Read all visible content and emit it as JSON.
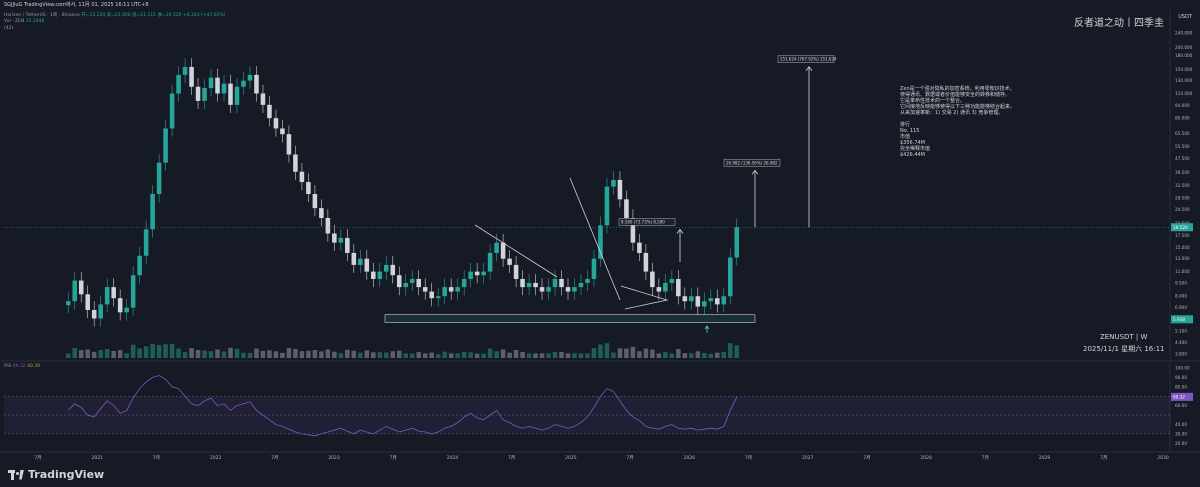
{
  "header": {
    "topline": "SGJJluG TradingView.com에서, 11月 01, 2025 16:11 UTC+8",
    "symbol_line": "Horizen / TetherUS · 1周 · Binance",
    "ohlc": "开=13.234 高=21.000 低=11.111 收=19.520 +6.343 (+47.02%)",
    "vol_line": "Vol · ZEN",
    "vol_value": "15.194K",
    "sub_line": "(42)"
  },
  "brand": "反者道之动丨四季圭",
  "quote_currency": "USDT",
  "description": {
    "lines": [
      "Zen是一个强对隐私的加密系统，利用零知识技术，",
      "使得通讯、数据或者价值能够安全的转移和储存。",
      "它是革命性技术的一个整合。",
      "它间接地反映能够使得以下三种功能能够结合起来，",
      "从来加速革新：1) 交易 2) 通讯 3) 竞争管理。",
      "",
      "排行",
      "No. 115",
      "市值",
      "$356.74M",
      "完全稀释市值",
      "$426.44M"
    ]
  },
  "symbol_label": "ZENUSDT | W",
  "date_label": "2025/11/1 星期六 16:11",
  "rsi": {
    "label": "RSI",
    "value": "69.32",
    "sub": "40.39"
  },
  "footer": {
    "logo_text": "TradingView"
  },
  "colors": {
    "up": "#26a69a",
    "down": "#d1d4dc",
    "rsi": "#7e57c2",
    "bg": "#161a25"
  },
  "chart_data": [
    {
      "type": "candlestick",
      "title": "Horizen / TetherUS · 1周 · Binance",
      "scale": "log",
      "y_ticks": [
        240.0,
        200.0,
        180.0,
        150.0,
        130.0,
        110.0,
        94.0,
        80.0,
        65.5,
        55.5,
        47.5,
        39.5,
        33.5,
        28.5,
        24.5,
        20.5,
        17.5,
        15.0,
        13.0,
        11.0,
        9.5,
        8.0,
        6.9,
        5.9,
        5.1,
        4.4,
        3.8
      ],
      "y_tick_labels": [
        "240.000",
        "200.000",
        "180.000",
        "150.000",
        "130.000",
        "110.000",
        "94.000",
        "80.000",
        "65.500",
        "55.500",
        "47.500",
        "39.500",
        "33.500",
        "28.500",
        "24.500",
        "20.500",
        "17.500",
        "15.000",
        "13.000",
        "11.000",
        "9.500",
        "8.000",
        "6.900",
        "5.900",
        "5.100",
        "4.400",
        "3.800"
      ],
      "x_labels": [
        "7月",
        "2021",
        "7月",
        "2022",
        "7月",
        "2023",
        "7月",
        "2024",
        "7月",
        "2025",
        "7月",
        "2026",
        "7月",
        "2027",
        "7月",
        "2028",
        "7月",
        "2029",
        "7月",
        "2030"
      ],
      "last_price": "19.520",
      "price_tags": [
        "19.520",
        "5.938"
      ],
      "targets": [
        {
          "label": "8.580 (73.73%) 8,580",
          "value": 20.5
        },
        {
          "label": "26.982 (136.56%) 26,982",
          "value": 44.0
        },
        {
          "label": "151.624 (767.92%) 151,624",
          "value": 168.0
        }
      ],
      "series": [
        {
          "name": "price",
          "values": [
            7.5,
            9.8,
            8.2,
            6.7,
            6.0,
            7.2,
            9.0,
            7.8,
            6.5,
            6.9,
            10.5,
            13.5,
            19.0,
            30.0,
            45.0,
            70.0,
            110.0,
            140.0,
            155.0,
            120.0,
            100.0,
            118.0,
            135.0,
            110.0,
            125.0,
            95.0,
            120.0,
            130.0,
            140.0,
            110.0,
            95.0,
            80.0,
            70.0,
            65.0,
            50.0,
            40.0,
            35.0,
            30.0,
            25.0,
            22.0,
            18.0,
            16.0,
            17.0,
            14.0,
            12.0,
            13.0,
            11.0,
            10.0,
            11.0,
            12.0,
            10.5,
            9.0,
            9.5,
            10.0,
            9.0,
            8.5,
            7.8,
            8.0,
            9.0,
            8.5,
            9.0,
            10.0,
            11.0,
            10.5,
            11.0,
            14.0,
            16.0,
            13.0,
            12.0,
            10.0,
            9.0,
            9.5,
            9.0,
            8.5,
            9.0,
            10.0,
            9.0,
            8.5,
            9.0,
            9.5,
            10.0,
            13.0,
            20.0,
            33.0,
            36.0,
            28.0,
            22.0,
            16.0,
            14.0,
            11.0,
            9.0,
            8.5,
            9.5,
            10.0,
            8.0,
            7.5,
            8.0,
            7.0,
            7.5,
            7.8,
            7.2,
            8.0,
            13.2,
            19.52
          ]
        }
      ]
    },
    {
      "type": "line",
      "title": "RSI",
      "y_ticks": [
        100,
        90,
        80,
        70,
        60,
        50,
        40,
        30,
        20
      ],
      "y_tick_labels": [
        "100.00",
        "90.00",
        "80.00",
        "",
        "60.00",
        "",
        "40.00",
        "30.00",
        "20.00"
      ],
      "series": [
        {
          "name": "RSI",
          "values": [
            55,
            62,
            58,
            50,
            48,
            57,
            65,
            60,
            52,
            55,
            68,
            78,
            85,
            90,
            92,
            88,
            80,
            78,
            70,
            62,
            60,
            65,
            68,
            60,
            62,
            55,
            60,
            62,
            64,
            55,
            50,
            45,
            40,
            38,
            35,
            32,
            30,
            29,
            28,
            30,
            32,
            34,
            36,
            33,
            30,
            34,
            32,
            30,
            34,
            38,
            35,
            32,
            34,
            36,
            33,
            32,
            30,
            32,
            36,
            38,
            42,
            48,
            52,
            47,
            45,
            50,
            55,
            45,
            42,
            38,
            36,
            38,
            36,
            34,
            36,
            40,
            38,
            36,
            38,
            42,
            48,
            58,
            70,
            78,
            75,
            65,
            55,
            48,
            44,
            38,
            36,
            35,
            38,
            40,
            36,
            35,
            36,
            34,
            35,
            36,
            35,
            38,
            55,
            69.32
          ]
        }
      ]
    }
  ]
}
